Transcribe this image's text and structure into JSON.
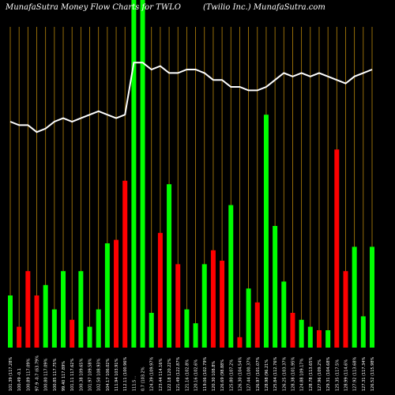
{
  "header": {
    "left_title": "MunafaSutra  Money Flow  Charts for TWLO",
    "right_title": "(Twilio  Inc.) MunafaSutra.com"
  },
  "colors": {
    "background": "#000000",
    "gridline": "#b8860b",
    "up_bar": "#00ff00",
    "down_bar": "#ff0000",
    "price_line": "#ffffff"
  },
  "chart_data": {
    "type": "bar",
    "title": "MunafaSutra  Money Flow  Charts for TWLO",
    "subtitle": "(Twilio  Inc.) MunafaSutra.com",
    "ylim": [
      0,
      100
    ],
    "grid": true,
    "categories": [
      "101.39 (117.28%",
      "100.49 -0.1",
      "100.89 117.09%",
      "97.9  -0.7 (63.79%",
      "100.80 117.09%",
      "100.85 117.75%",
      "99.40 117.89%",
      "101.11 117.62%",
      "100.38 109.65%",
      "101.97 109.58%",
      "102.50 108.93%",
      "104.17 106.02%",
      "111.94 103.91%",
      "112.11 (100.96%",
      "111.5 ..",
      "0.7 (103.2%",
      "124.39 (109.97%",
      "123.44 114.16%",
      "122.18 120.22%",
      "121.49 (122.87%",
      "121.16 (102.8%",
      "120.16 (102.6%",
      "119.06 (102.79%",
      "120.30 108.8%",
      "126.69 (98.88%",
      "125.80 (107.2%",
      "126.30 (104.54%",
      "127.44 (100.37%",
      "126.97 (101.07%",
      "128.98 (96.21%",
      "125.84 (112.76%",
      "126.25 (103.37%",
      "128.38 (101.95%",
      "124.88 109.17%",
      "128.78 (113.65%",
      "127.96 (109.2%",
      "129.31 (104.68%",
      "125.35 (117.5%",
      "128.99 (114.6%",
      "127.92 (113.68%",
      "127.31 (117.34%",
      "126.52 (115.98%"
    ],
    "series": [
      {
        "name": "",
        "colors": [
          "up",
          "down",
          "down",
          "down",
          "up",
          "up",
          "up",
          "down",
          "up",
          "up",
          "up",
          "up",
          "down",
          "down",
          "up",
          "up",
          "up",
          "down",
          "up",
          "down",
          "up",
          "up",
          "up",
          "down",
          "down",
          "up",
          "down",
          "up",
          "down",
          "up",
          "up",
          "up",
          "down",
          "up",
          "up",
          "down",
          "up",
          "down",
          "down",
          "up",
          "up",
          "up"
        ],
        "values": [
          15,
          6,
          22,
          15,
          18,
          11,
          22,
          8,
          22,
          6,
          11,
          30,
          31,
          48,
          100,
          100,
          10,
          33,
          47,
          24,
          11,
          7,
          24,
          28,
          25,
          41,
          3,
          17,
          13,
          67,
          35,
          19,
          10,
          8,
          6,
          5,
          5,
          57,
          22,
          29,
          9,
          29
        ]
      }
    ],
    "price_line": [
      65,
      64,
      64,
      62,
      63,
      65,
      66,
      65,
      66,
      67,
      68,
      67,
      66,
      67,
      82,
      82,
      80,
      81,
      79,
      79,
      80,
      80,
      79,
      77,
      77,
      75,
      75,
      74,
      74,
      75,
      77,
      79,
      78,
      79,
      78,
      79,
      78,
      77,
      76,
      78,
      79,
      80
    ]
  }
}
